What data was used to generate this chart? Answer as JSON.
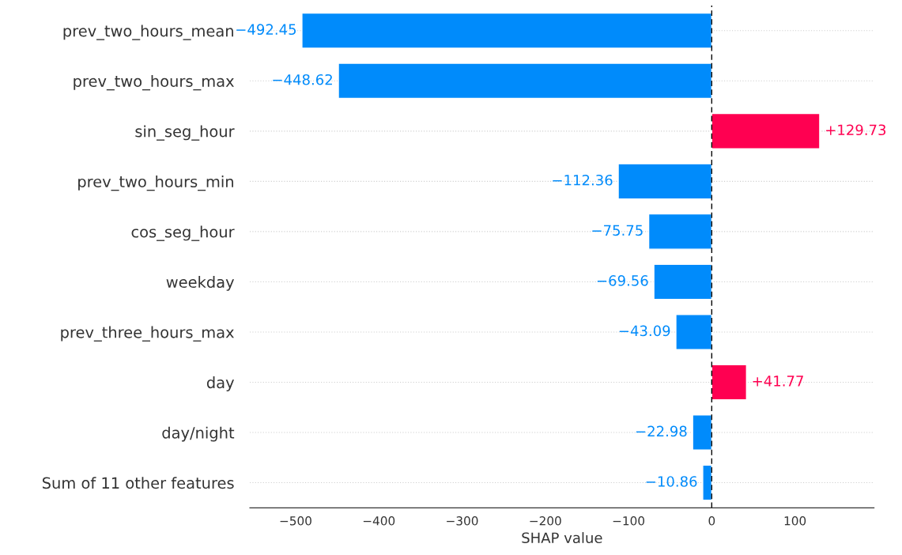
{
  "chart_data": {
    "type": "bar",
    "orientation": "horizontal",
    "xlabel": "SHAP value",
    "categories": [
      "prev_two_hours_mean",
      "prev_two_hours_max",
      "sin_seg_hour",
      "prev_two_hours_min",
      "cos_seg_hour",
      "weekday",
      "prev_three_hours_max",
      "day",
      "day/night",
      "Sum of 11 other features"
    ],
    "values": [
      -492.45,
      -448.62,
      129.73,
      -112.36,
      -75.75,
      -69.56,
      -43.09,
      41.77,
      -22.98,
      -10.86
    ],
    "colors": [
      "#008bfb",
      "#008bfb",
      "#ff0051",
      "#008bfb",
      "#008bfb",
      "#008bfb",
      "#008bfb",
      "#ff0051",
      "#008bfb",
      "#008bfb"
    ],
    "value_labels": [
      "−492.45",
      "−448.62",
      "+129.73",
      "−112.36",
      "−75.75",
      "−69.56",
      "−43.09",
      "+41.77",
      "−22.98",
      "−10.86"
    ],
    "xlim": [
      -555,
      195
    ],
    "xticks": [
      {
        "value": -500,
        "label": "−500"
      },
      {
        "value": -400,
        "label": "−400"
      },
      {
        "value": -300,
        "label": "−300"
      },
      {
        "value": -200,
        "label": "−200"
      },
      {
        "value": -100,
        "label": "−100"
      },
      0,
      100
    ],
    "ref_lines": [
      {
        "axis": "x",
        "value": 0,
        "color": "#000000",
        "line_style": "dashed"
      }
    ],
    "grid": "y",
    "legend": false
  }
}
